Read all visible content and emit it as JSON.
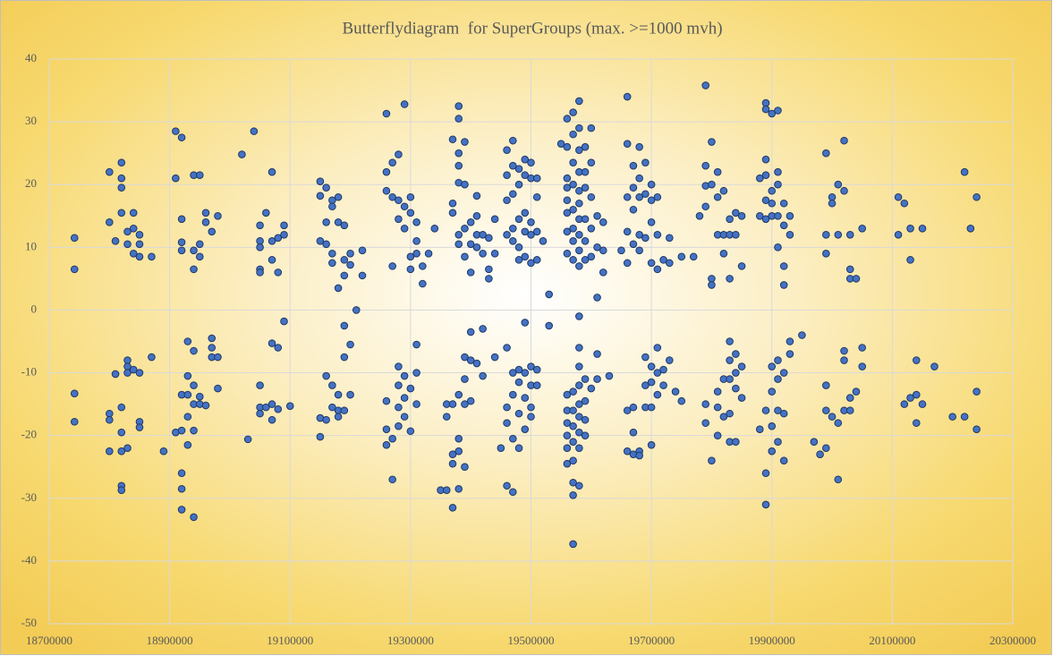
{
  "chart_data": {
    "type": "scatter",
    "title": "Butterflydiagram  for SuperGroups (max. >=1000 mvh)",
    "xlim": [
      18700000,
      20300000
    ],
    "xticks": [
      18700000,
      18900000,
      19100000,
      19300000,
      19500000,
      19700000,
      19900000,
      20100000,
      20300000
    ],
    "ylim": [
      -50,
      40
    ],
    "yticks": [
      -50,
      -40,
      -30,
      -20,
      -10,
      0,
      10,
      20,
      30,
      40
    ],
    "grid": true,
    "color": "#4472c4",
    "x": [
      18742000,
      18742000,
      18742000,
      18742000,
      18800000,
      18800000,
      18800000,
      18800000,
      18800000,
      18810000,
      18810000,
      18820000,
      18820000,
      18820000,
      18820000,
      18820000,
      18820000,
      18820000,
      18820000,
      18820000,
      18830000,
      18830000,
      18830000,
      18830000,
      18830000,
      18830000,
      18840000,
      18840000,
      18840000,
      18840000,
      18850000,
      18850000,
      18850000,
      18850000,
      18850000,
      18850000,
      18870000,
      18870000,
      18890000,
      18910000,
      18910000,
      18910000,
      18920000,
      18920000,
      18920000,
      18920000,
      18920000,
      18920000,
      18920000,
      18920000,
      18920000,
      18930000,
      18930000,
      18930000,
      18930000,
      18930000,
      18940000,
      18940000,
      18940000,
      18940000,
      18940000,
      18940000,
      18940000,
      18940000,
      18950000,
      18950000,
      18950000,
      18950000,
      18950000,
      18960000,
      18960000,
      18960000,
      18970000,
      18970000,
      18970000,
      18970000,
      18980000,
      18980000,
      18980000,
      19020000,
      19030000,
      19040000,
      19050000,
      19050000,
      19050000,
      19050000,
      19050000,
      19050000,
      19050000,
      19050000,
      19060000,
      19060000,
      19070000,
      19070000,
      19070000,
      19070000,
      19070000,
      19070000,
      19080000,
      19080000,
      19080000,
      19080000,
      19090000,
      19090000,
      19090000,
      19100000,
      19150000,
      19150000,
      19150000,
      19150000,
      19150000,
      19160000,
      19160000,
      19160000,
      19160000,
      19160000,
      19170000,
      19170000,
      19170000,
      19170000,
      19170000,
      19170000,
      19180000,
      19180000,
      19180000,
      19180000,
      19180000,
      19180000,
      19190000,
      19190000,
      19190000,
      19190000,
      19190000,
      19190000,
      19200000,
      19200000,
      19200000,
      19200000,
      19210000,
      19220000,
      19220000,
      19260000,
      19260000,
      19260000,
      19260000,
      19260000,
      19260000,
      19270000,
      19270000,
      19270000,
      19270000,
      19270000,
      19280000,
      19280000,
      19280000,
      19280000,
      19280000,
      19280000,
      19280000,
      19290000,
      19290000,
      19290000,
      19290000,
      19290000,
      19290000,
      19300000,
      19300000,
      19300000,
      19300000,
      19300000,
      19300000,
      19310000,
      19310000,
      19310000,
      19310000,
      19310000,
      19310000,
      19320000,
      19320000,
      19330000,
      19340000,
      19350000,
      19360000,
      19360000,
      19360000,
      19370000,
      19370000,
      19370000,
      19370000,
      19370000,
      19370000,
      19370000,
      19380000,
      19380000,
      19380000,
      19380000,
      19380000,
      19380000,
      19380000,
      19380000,
      19380000,
      19380000,
      19380000,
      19390000,
      19390000,
      19390000,
      19390000,
      19390000,
      19390000,
      19390000,
      19390000,
      19400000,
      19400000,
      19400000,
      19400000,
      19400000,
      19400000,
      19410000,
      19410000,
      19410000,
      19410000,
      19410000,
      19420000,
      19420000,
      19420000,
      19420000,
      19430000,
      19430000,
      19430000,
      19440000,
      19440000,
      19440000,
      19450000,
      19460000,
      19460000,
      19460000,
      19460000,
      19460000,
      19460000,
      19460000,
      19460000,
      19470000,
      19470000,
      19470000,
      19470000,
      19470000,
      19470000,
      19470000,
      19470000,
      19470000,
      19480000,
      19480000,
      19480000,
      19480000,
      19480000,
      19480000,
      19480000,
      19480000,
      19480000,
      19490000,
      19490000,
      19490000,
      19490000,
      19490000,
      19490000,
      19490000,
      19490000,
      19490000,
      19500000,
      19500000,
      19500000,
      19500000,
      19500000,
      19500000,
      19500000,
      19500000,
      19500000,
      19510000,
      19510000,
      19510000,
      19510000,
      19510000,
      19510000,
      19520000,
      19530000,
      19530000,
      19550000,
      19560000,
      19560000,
      19560000,
      19560000,
      19560000,
      19560000,
      19560000,
      19560000,
      19560000,
      19560000,
      19560000,
      19560000,
      19560000,
      19560000,
      19570000,
      19570000,
      19570000,
      19570000,
      19570000,
      19570000,
      19570000,
      19570000,
      19570000,
      19570000,
      19570000,
      19570000,
      19570000,
      19570000,
      19570000,
      19570000,
      19580000,
      19580000,
      19580000,
      19580000,
      19580000,
      19580000,
      19580000,
      19580000,
      19580000,
      19580000,
      19580000,
      19580000,
      19580000,
      19580000,
      19580000,
      19580000,
      19580000,
      19580000,
      19580000,
      19590000,
      19590000,
      19590000,
      19590000,
      19590000,
      19590000,
      19590000,
      19590000,
      19590000,
      19590000,
      19600000,
      19600000,
      19600000,
      19600000,
      19600000,
      19600000,
      19610000,
      19610000,
      19610000,
      19610000,
      19610000,
      19620000,
      19620000,
      19620000,
      19630000,
      19650000,
      19660000,
      19660000,
      19660000,
      19660000,
      19660000,
      19660000,
      19660000,
      19670000,
      19670000,
      19670000,
      19670000,
      19670000,
      19670000,
      19670000,
      19680000,
      19680000,
      19680000,
      19680000,
      19680000,
      19680000,
      19680000,
      19690000,
      19690000,
      19690000,
      19690000,
      19690000,
      19690000,
      19700000,
      19700000,
      19700000,
      19700000,
      19700000,
      19700000,
      19700000,
      19700000,
      19710000,
      19710000,
      19710000,
      19710000,
      19710000,
      19710000,
      19720000,
      19720000,
      19720000,
      19730000,
      19730000,
      19730000,
      19740000,
      19750000,
      19750000,
      19770000,
      19780000,
      19790000,
      19790000,
      19790000,
      19790000,
      19790000,
      19790000,
      19800000,
      19800000,
      19800000,
      19800000,
      19800000,
      19810000,
      19810000,
      19810000,
      19810000,
      19810000,
      19810000,
      19820000,
      19820000,
      19820000,
      19820000,
      19820000,
      19830000,
      19830000,
      19830000,
      19830000,
      19830000,
      19830000,
      19830000,
      19830000,
      19840000,
      19840000,
      19840000,
      19840000,
      19840000,
      19840000,
      19850000,
      19850000,
      19850000,
      19850000,
      19880000,
      19880000,
      19880000,
      19890000,
      19890000,
      19890000,
      19890000,
      19890000,
      19890000,
      19890000,
      19890000,
      19890000,
      19900000,
      19900000,
      19900000,
      19900000,
      19900000,
      19900000,
      19900000,
      19900000,
      19910000,
      19910000,
      19910000,
      19910000,
      19910000,
      19910000,
      19910000,
      19910000,
      19910000,
      19920000,
      19920000,
      19920000,
      19920000,
      19920000,
      19920000,
      19920000,
      19930000,
      19930000,
      19930000,
      19930000,
      19950000,
      19970000,
      19980000,
      19990000,
      19990000,
      19990000,
      19990000,
      19990000,
      19990000,
      20000000,
      20000000,
      20000000,
      20010000,
      20010000,
      20010000,
      20010000,
      20020000,
      20020000,
      20020000,
      20020000,
      20020000,
      20030000,
      20030000,
      20030000,
      20030000,
      20030000,
      20040000,
      20040000,
      20050000,
      20050000,
      20050000,
      20110000,
      20110000,
      20120000,
      20120000,
      20130000,
      20130000,
      20130000,
      20140000,
      20140000,
      20140000,
      20150000,
      20150000,
      20170000,
      20200000,
      20220000,
      20220000,
      20230000,
      20240000,
      20240000,
      20240000
    ],
    "values": [
      11.5,
      6.5,
      -13.3,
      -17.8,
      22,
      14,
      -16.5,
      -17.5,
      -22.5,
      11,
      -10.2,
      23.5,
      21,
      19.5,
      15.5,
      -15.5,
      -19.5,
      -22.5,
      -28,
      -28.7,
      12.5,
      10.5,
      -8,
      -9,
      -10,
      -22,
      15.5,
      13,
      9,
      -9.5,
      12,
      10.5,
      8.5,
      -10,
      -17.8,
      -18.7,
      8.5,
      -7.5,
      -22.5,
      28.5,
      21,
      -19.5,
      27.5,
      14.5,
      10.8,
      9.5,
      -13.5,
      -19.2,
      -26,
      -28.5,
      -31.8,
      -5,
      -10.5,
      -13.5,
      -17,
      -21.5,
      21.5,
      9.5,
      6.5,
      -6.5,
      -12,
      -15,
      -19.2,
      -33,
      21.5,
      10.5,
      8.5,
      -13.8,
      -15,
      15.5,
      14,
      -15.2,
      12.5,
      -4.5,
      -6,
      -7.5,
      15,
      -7.5,
      -12.5,
      24.8,
      -20.6,
      28.5,
      13.5,
      11,
      10,
      6.5,
      6,
      -12,
      -15.5,
      -16.5,
      15.5,
      -15.5,
      22,
      11,
      8,
      -5.3,
      -15,
      -17.5,
      11.5,
      6,
      -6,
      -15.8,
      13.5,
      12,
      -1.8,
      -15.3,
      20.5,
      18.2,
      11,
      -17.2,
      -20.2,
      19.5,
      14,
      10.5,
      -10.5,
      -17.5,
      17.5,
      16.5,
      9,
      7.5,
      -12,
      -15.5,
      18,
      14,
      3.5,
      -13.5,
      -16,
      -17,
      13.5,
      8,
      5.5,
      -2.5,
      -7.5,
      -16,
      9,
      7.2,
      -5.5,
      -13.5,
      0,
      9.5,
      5.5,
      31.3,
      22,
      19,
      -14.5,
      -19,
      -21.5,
      23.5,
      18,
      7,
      -27,
      -20.5,
      24.8,
      17.5,
      14.5,
      -9,
      -12,
      -15.5,
      -18.5,
      32.8,
      16.5,
      13,
      -10.5,
      -14,
      -17,
      18,
      15.5,
      8.5,
      6.5,
      -12.5,
      -19.3,
      14,
      11,
      9,
      -5.5,
      -10,
      -15,
      7,
      4.2,
      9,
      13,
      -28.7,
      -28.7,
      -17,
      -15,
      27.2,
      17,
      15.5,
      -24.5,
      -23,
      -31.5,
      -15,
      32.5,
      30.5,
      25,
      23,
      20.3,
      12,
      10.5,
      -13.5,
      -20.5,
      -22.5,
      -28.5,
      26.8,
      20,
      13,
      8.5,
      -7.5,
      -11,
      -15,
      -25,
      14,
      10.5,
      6,
      -3.5,
      -8,
      -14.5,
      18.2,
      15,
      12,
      10,
      -8.5,
      12,
      9,
      -3,
      -10.5,
      11.5,
      6.5,
      5,
      14.5,
      9,
      -7.5,
      -22,
      25.5,
      21.5,
      17.5,
      12,
      -6,
      -15.5,
      -18,
      -28,
      27,
      23,
      18.5,
      13,
      11,
      -10,
      -13.5,
      -20.5,
      -29,
      22.5,
      20,
      14.5,
      10,
      8,
      -9.5,
      -11.5,
      -16.5,
      -22,
      24,
      21.5,
      15.5,
      12.5,
      8.5,
      -2,
      -10,
      -14,
      -19,
      23.5,
      21,
      14,
      12,
      7.5,
      -9,
      -12,
      -15.5,
      -17,
      21,
      18,
      12.5,
      8,
      -9.5,
      -12,
      11,
      2.5,
      -2.5,
      26.5,
      30.5,
      26,
      21,
      19.5,
      17.5,
      15.5,
      12.5,
      9,
      -13.5,
      -16,
      -18,
      -20,
      -22,
      -24.5,
      31.5,
      28,
      23.5,
      20,
      16,
      13,
      11,
      8,
      -13,
      -16,
      -18.5,
      -21,
      -24,
      -27.5,
      -29.5,
      -37.3,
      33.3,
      29,
      25.5,
      22,
      19,
      17,
      14.5,
      12,
      9.5,
      7,
      -1,
      -6,
      -9,
      -12,
      -15,
      -17,
      -19.5,
      -22,
      -28,
      26,
      22,
      19.5,
      14.5,
      11,
      8,
      -11,
      -14.5,
      -17.5,
      -20,
      29,
      23.5,
      18,
      13,
      8.5,
      -12.5,
      15,
      10,
      2,
      -7,
      -11,
      14,
      9.5,
      6,
      -10.5,
      9.5,
      34,
      26.5,
      18,
      12.5,
      7.5,
      -16,
      -22.5,
      23,
      19.5,
      16,
      10.5,
      -15.5,
      -19.5,
      -23,
      26,
      21,
      18,
      12,
      9.5,
      -22.5,
      -23.2,
      23.5,
      18.5,
      11.5,
      -7.5,
      -12,
      -15.5,
      20,
      17.5,
      14,
      7.5,
      -9,
      -11.5,
      -15.5,
      -21.5,
      18,
      12,
      6.5,
      -6,
      -10,
      -13.5,
      8,
      -9.5,
      -12,
      11.5,
      7.5,
      -8,
      -13,
      8.5,
      -14.5,
      8.5,
      15,
      35.8,
      23,
      19.8,
      16.5,
      -15,
      -18,
      26.8,
      20,
      5,
      4,
      -24,
      22,
      18,
      12,
      -13,
      -15.5,
      -20,
      19,
      12,
      9,
      -11,
      -17,
      14.5,
      12,
      5,
      -5,
      -8,
      -11,
      -16.5,
      -21,
      15.5,
      12,
      -7,
      -10,
      -12.5,
      -21,
      15,
      7,
      -9,
      -14,
      21,
      15,
      -19,
      33,
      32,
      24,
      21.5,
      17.5,
      14.5,
      -16,
      -26,
      -31,
      31.3,
      19,
      17,
      15,
      -9,
      -13,
      -18.5,
      -22.5,
      31.8,
      22,
      20,
      15,
      10,
      -8,
      -11,
      -16,
      -21,
      17,
      13.5,
      7,
      4,
      -10,
      -16.5,
      -24,
      15,
      12,
      -5,
      -7,
      -4,
      -21,
      -23,
      25,
      12,
      9,
      -12,
      -16,
      -22,
      18,
      17,
      -17,
      20,
      12,
      -27,
      -18,
      27,
      19,
      -6.5,
      -8,
      -16,
      12,
      6.5,
      5,
      -14,
      -16,
      5,
      -13,
      13,
      -6,
      -9,
      18,
      12,
      17,
      -15,
      13,
      8,
      -14,
      -8,
      -13.5,
      -18,
      13,
      -15,
      -9,
      -17,
      22,
      -17,
      13,
      18,
      -13,
      -19
    ]
  }
}
